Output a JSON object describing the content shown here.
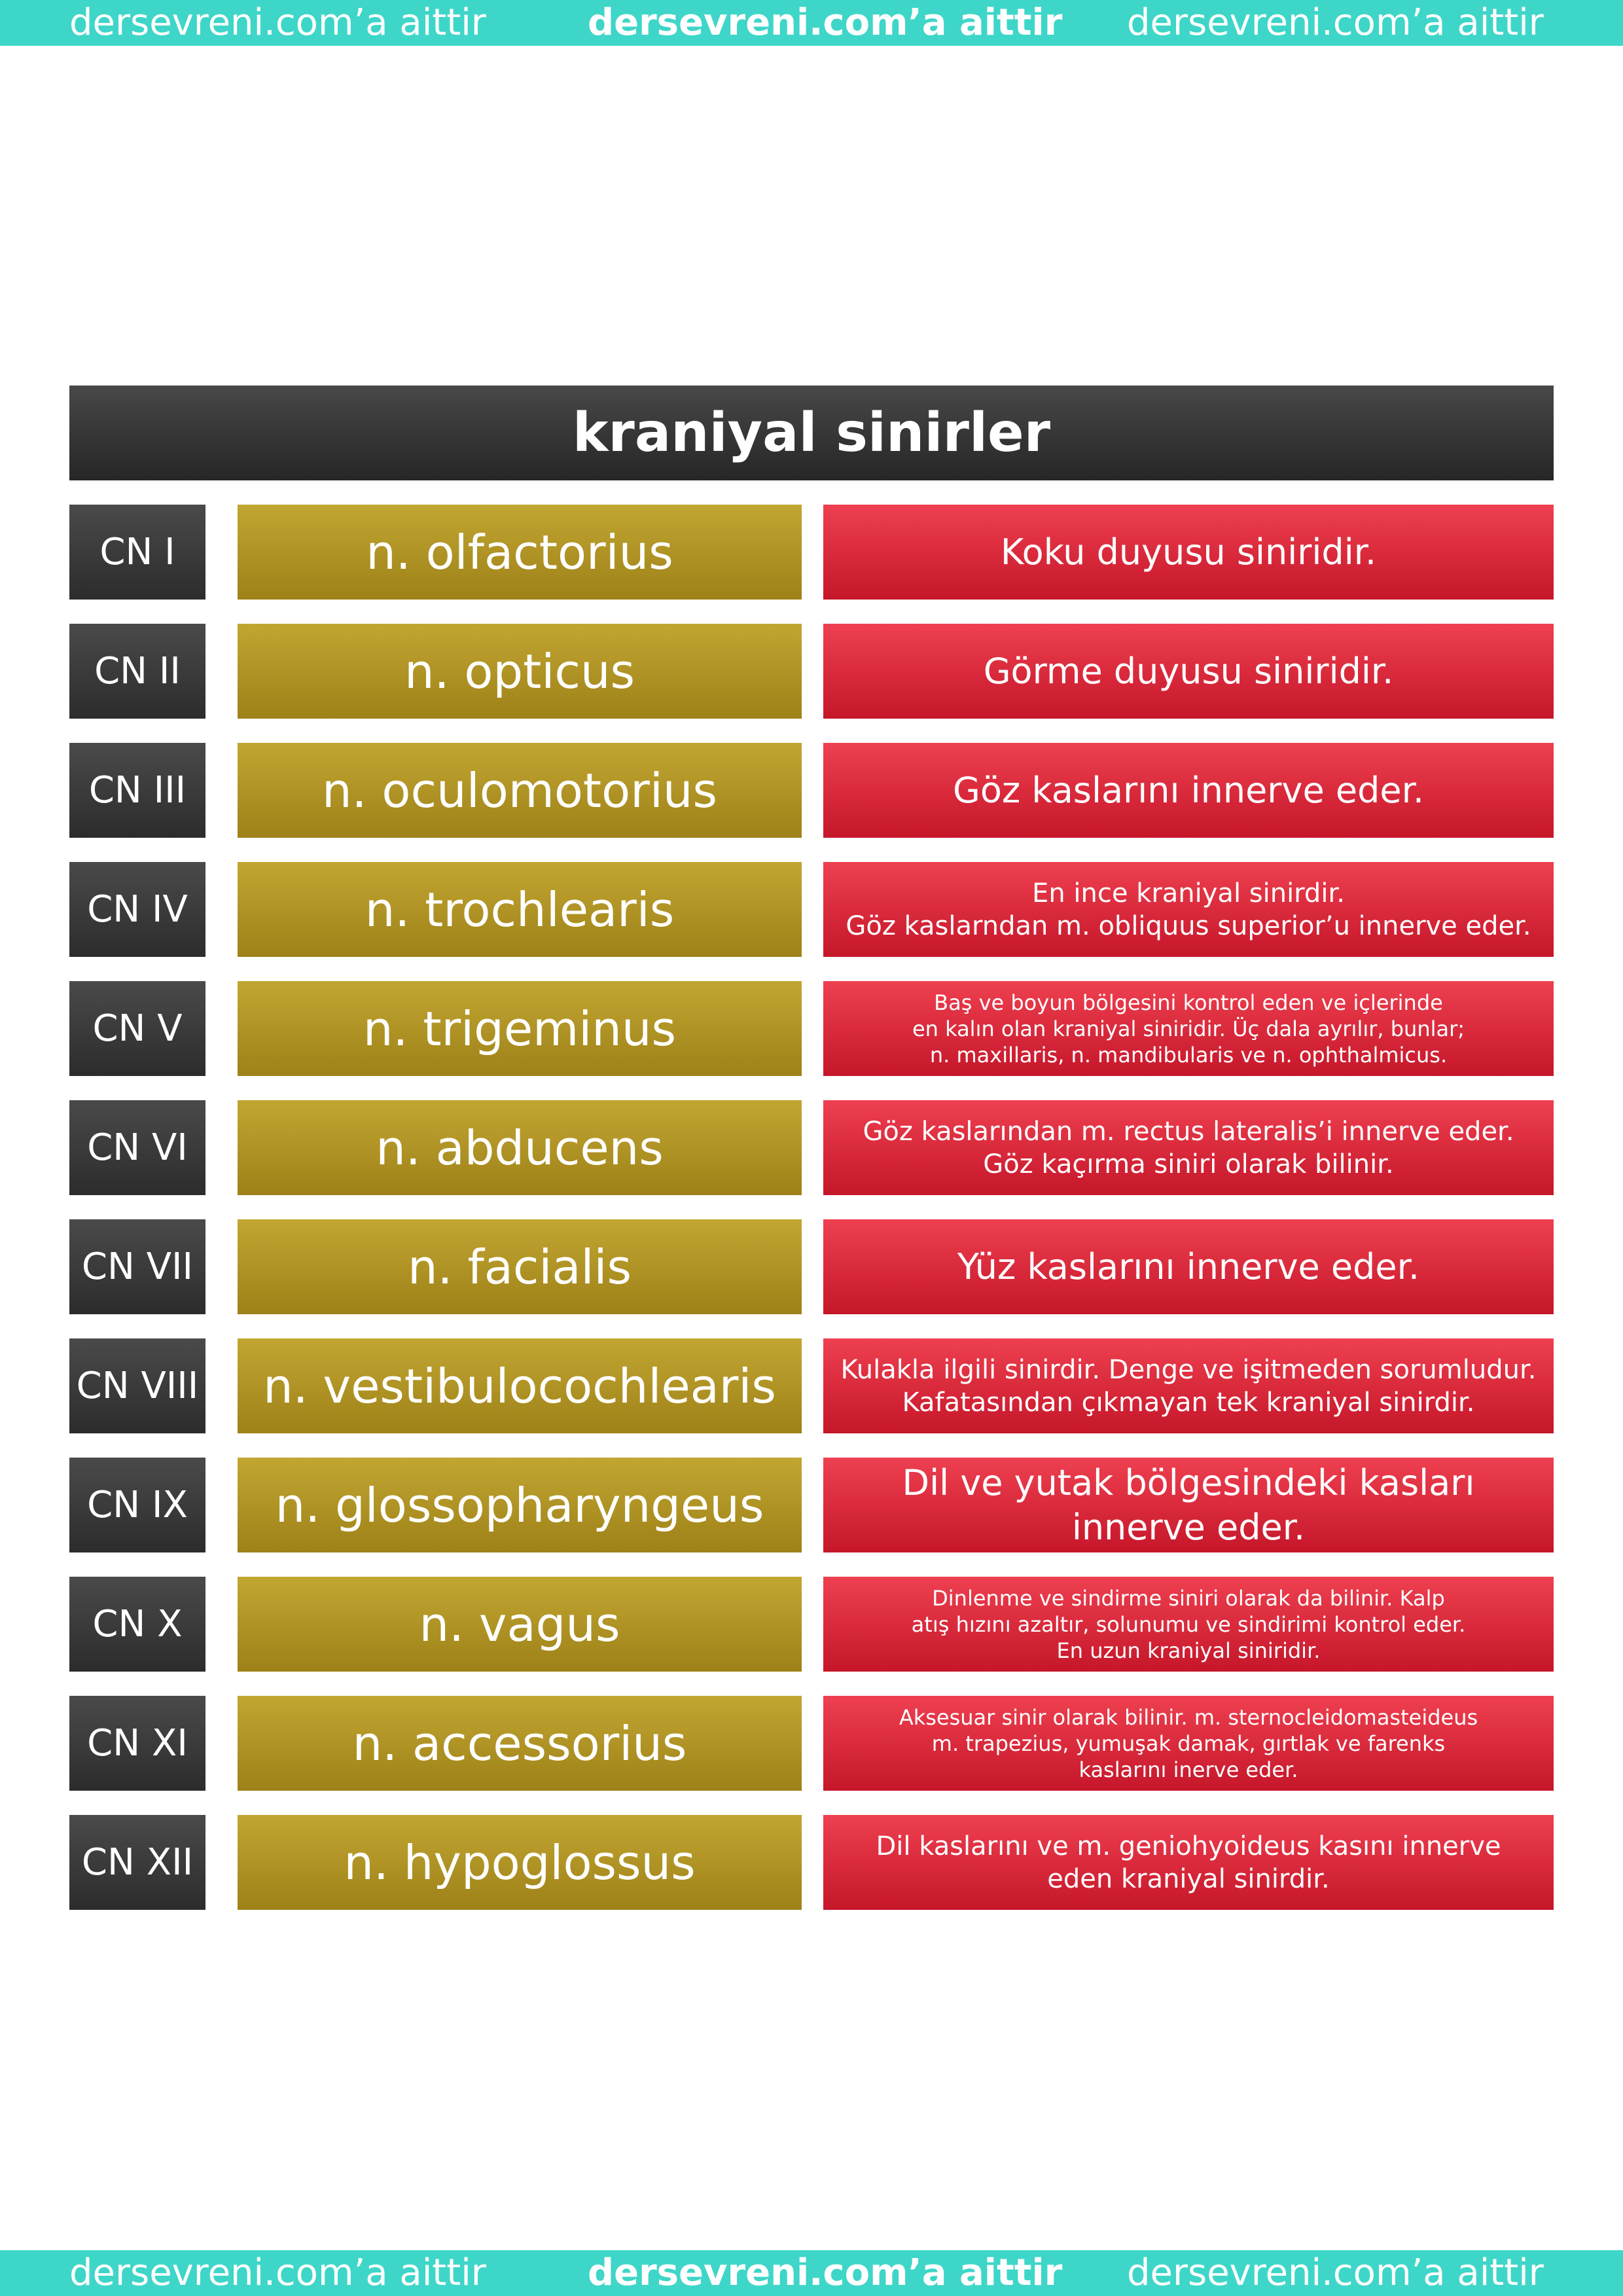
{
  "banner": {
    "left": "dersevreni.com’a aittir",
    "center": "dersevreni.com’a aittir",
    "right": "dersevreni.com’a aittir"
  },
  "title": "kraniyal sinirler",
  "nerves": [
    {
      "code": "CN I",
      "name": "n. olfactorius",
      "desc": [
        "Koku duyusu siniridir."
      ]
    },
    {
      "code": "CN II",
      "name": "n. opticus",
      "desc": [
        "Görme duyusu siniridir."
      ]
    },
    {
      "code": "CN III",
      "name": "n. oculomotorius",
      "desc": [
        "Göz kaslarını innerve eder."
      ]
    },
    {
      "code": "CN IV",
      "name": "n. trochlearis",
      "desc": [
        "En ince kraniyal sinirdir.",
        "Göz kaslarndan m. obliquus superior’u innerve eder."
      ]
    },
    {
      "code": "CN V",
      "name": "n. trigeminus",
      "desc": [
        "Baş ve boyun bölgesini kontrol eden ve içlerinde",
        "en kalın olan kraniyal siniridir. Üç dala ayrılır, bunlar;",
        "n. maxillaris, n. mandibularis ve n. ophthalmicus."
      ]
    },
    {
      "code": "CN VI",
      "name": "n. abducens",
      "desc": [
        "Göz kaslarından m. rectus lateralis’i innerve eder.",
        "Göz kaçırma siniri olarak bilinir."
      ]
    },
    {
      "code": "CN VII",
      "name": "n. facialis",
      "desc": [
        "Yüz kaslarını innerve eder."
      ]
    },
    {
      "code": "CN VIII",
      "name": "n. vestibulocochlearis",
      "desc": [
        "Kulakla ilgili sinirdir. Denge ve işitmeden sorumludur.",
        "Kafatasından çıkmayan tek kraniyal sinirdir."
      ]
    },
    {
      "code": "CN IX",
      "name": "n. glossopharyngeus",
      "desc": [
        "Dil ve yutak bölgesindeki kasları innerve eder."
      ]
    },
    {
      "code": "CN X",
      "name": "n. vagus",
      "desc": [
        "Dinlenme ve sindirme siniri olarak da bilinir. Kalp",
        "atış hızını azaltır, solunumu ve sindirimi kontrol eder.",
        "En uzun kraniyal siniridir."
      ]
    },
    {
      "code": "CN XI",
      "name": "n. accessorius",
      "desc": [
        "Aksesuar sinir olarak bilinir. m. sternocleidomasteideus",
        "m. trapezius, yumuşak damak, gırtlak ve farenks",
        "kaslarını inerve eder."
      ]
    },
    {
      "code": "CN XII",
      "name": "n. hypoglossus",
      "desc": [
        "Dil kaslarını ve m. geniohyoideus kasını innerve",
        "eden kraniyal sinirdir."
      ]
    }
  ]
}
